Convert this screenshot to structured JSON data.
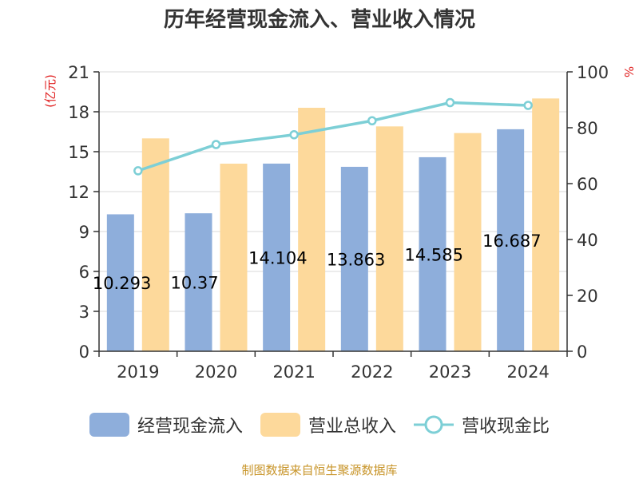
{
  "chart_data": {
    "type": "bar",
    "title": "历年经营现金流入、营业收入情况",
    "categories": [
      "2019",
      "2020",
      "2021",
      "2022",
      "2023",
      "2024"
    ],
    "series": [
      {
        "name": "经营现金流入",
        "type": "bar",
        "axis": "left",
        "color": "#8eaedb",
        "values": [
          10.293,
          10.37,
          14.104,
          13.863,
          14.585,
          16.687
        ]
      },
      {
        "name": "营业总收入",
        "type": "bar",
        "axis": "left",
        "color": "#fdd99b",
        "values": [
          16.0,
          14.1,
          18.3,
          16.9,
          16.4,
          19.0
        ]
      },
      {
        "name": "营收现金比",
        "type": "line",
        "axis": "right",
        "color": "#7dcfd6",
        "values": [
          64.6,
          74.0,
          77.5,
          82.5,
          89.0,
          88.0
        ]
      }
    ],
    "data_labels": [
      "10.293",
      "10.37",
      "14.104",
      "13.863",
      "14.585",
      "16.687"
    ],
    "left_axis": {
      "label": "(亿元)",
      "ylim": [
        0,
        21
      ],
      "ticks": [
        0,
        3,
        6,
        9,
        12,
        15,
        18,
        21
      ]
    },
    "right_axis": {
      "label": "%",
      "ylim": [
        0,
        100
      ],
      "ticks": [
        0,
        20,
        40,
        60,
        80,
        100
      ]
    },
    "grid": true,
    "legend_position": "bottom"
  },
  "source_note": "制图数据来自恒生聚源数据库"
}
